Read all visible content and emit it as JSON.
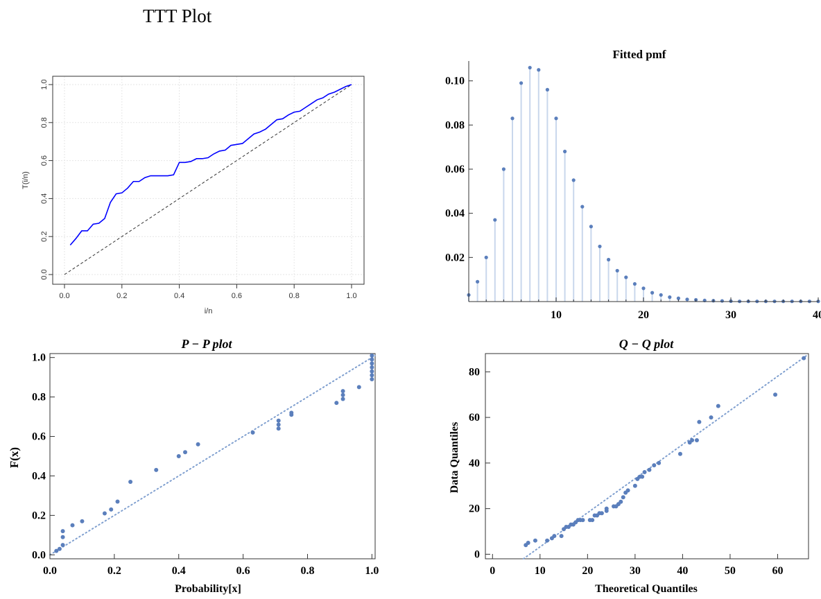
{
  "figure_title": "TTT Plot",
  "colors": {
    "ttt_line": "#0000ff",
    "points": "#5b7fbc",
    "stem": "#c9d7ec",
    "reference": "#7f9fcf"
  },
  "chart_data": [
    {
      "id": "ttt",
      "type": "line",
      "title": "",
      "xlabel": "i/n",
      "ylabel": "T(i/n)",
      "xlim": [
        0,
        1
      ],
      "ylim": [
        0,
        1
      ],
      "xticks": [
        "0.0",
        "0.2",
        "0.4",
        "0.6",
        "0.8",
        "1.0"
      ],
      "yticks": [
        "0.0",
        "0.2",
        "0.4",
        "0.6",
        "0.8",
        "1.0"
      ],
      "grid": true,
      "reference_line": "diagonal",
      "series": [
        {
          "x": [
            0.02,
            0.04,
            0.06,
            0.08,
            0.1,
            0.12,
            0.14,
            0.16,
            0.18,
            0.2,
            0.22,
            0.24,
            0.26,
            0.28,
            0.3,
            0.32,
            0.34,
            0.36,
            0.38,
            0.4,
            0.42,
            0.44,
            0.46,
            0.48,
            0.5,
            0.52,
            0.54,
            0.56,
            0.58,
            0.6,
            0.62,
            0.64,
            0.66,
            0.68,
            0.7,
            0.72,
            0.74,
            0.76,
            0.78,
            0.8,
            0.82,
            0.84,
            0.86,
            0.88,
            0.9,
            0.92,
            0.94,
            0.96,
            0.98,
            1.0
          ],
          "y": [
            0.155,
            0.19,
            0.23,
            0.23,
            0.265,
            0.27,
            0.295,
            0.38,
            0.425,
            0.43,
            0.455,
            0.49,
            0.49,
            0.51,
            0.52,
            0.52,
            0.52,
            0.52,
            0.525,
            0.59,
            0.59,
            0.595,
            0.61,
            0.61,
            0.615,
            0.635,
            0.65,
            0.655,
            0.68,
            0.685,
            0.69,
            0.715,
            0.74,
            0.75,
            0.765,
            0.79,
            0.815,
            0.82,
            0.84,
            0.855,
            0.86,
            0.88,
            0.9,
            0.92,
            0.93,
            0.95,
            0.96,
            0.975,
            0.99,
            1.0
          ]
        }
      ]
    },
    {
      "id": "pmf",
      "type": "bar",
      "title": "Fitted pmf",
      "xlabel": "",
      "ylabel": "",
      "xlim": [
        0,
        40
      ],
      "ylim": [
        0,
        0.109
      ],
      "xticks": [
        "10",
        "20",
        "30",
        "40"
      ],
      "yticks": [
        "0.02",
        "0.04",
        "0.06",
        "0.08",
        "0.10"
      ],
      "grid": false,
      "x": [
        0,
        1,
        2,
        3,
        4,
        5,
        6,
        7,
        8,
        9,
        10,
        11,
        12,
        13,
        14,
        15,
        16,
        17,
        18,
        19,
        20,
        21,
        22,
        23,
        24,
        25,
        26,
        27,
        28,
        29,
        30,
        31,
        32,
        33,
        34,
        35,
        36,
        37,
        38,
        39,
        40
      ],
      "values": [
        0.003,
        0.009,
        0.02,
        0.037,
        0.06,
        0.083,
        0.099,
        0.106,
        0.105,
        0.096,
        0.083,
        0.068,
        0.055,
        0.043,
        0.034,
        0.025,
        0.019,
        0.014,
        0.011,
        0.008,
        0.006,
        0.004,
        0.003,
        0.002,
        0.0015,
        0.001,
        0.0008,
        0.0005,
        0.0004,
        0.0003,
        0.0002,
        0.0001,
        0.0001,
        0.0001,
        0.0001,
        0.0001,
        0.0001,
        0.0001,
        0.0001,
        0.0001,
        0.0001
      ]
    },
    {
      "id": "pp",
      "type": "scatter",
      "title": "P − P plot",
      "xlabel": "Probability[x]",
      "ylabel": "F(x)",
      "xlim": [
        0,
        1.01
      ],
      "ylim": [
        -0.02,
        1.02
      ],
      "xticks": [
        "0.0",
        "0.2",
        "0.4",
        "0.6",
        "0.8",
        "1.0"
      ],
      "yticks": [
        "0.0",
        "0.2",
        "0.4",
        "0.6",
        "0.8",
        "1.0"
      ],
      "grid": false,
      "reference_line": "diagonal",
      "points": [
        [
          0.02,
          0.02
        ],
        [
          0.03,
          0.03
        ],
        [
          0.04,
          0.05
        ],
        [
          0.04,
          0.09
        ],
        [
          0.04,
          0.12
        ],
        [
          0.07,
          0.15
        ],
        [
          0.1,
          0.17
        ],
        [
          0.17,
          0.21
        ],
        [
          0.19,
          0.23
        ],
        [
          0.21,
          0.27
        ],
        [
          0.25,
          0.37
        ],
        [
          0.33,
          0.43
        ],
        [
          0.4,
          0.5
        ],
        [
          0.42,
          0.52
        ],
        [
          0.46,
          0.56
        ],
        [
          0.63,
          0.62
        ],
        [
          0.71,
          0.64
        ],
        [
          0.71,
          0.66
        ],
        [
          0.71,
          0.68
        ],
        [
          0.75,
          0.71
        ],
        [
          0.75,
          0.72
        ],
        [
          0.89,
          0.77
        ],
        [
          0.91,
          0.79
        ],
        [
          0.91,
          0.81
        ],
        [
          0.91,
          0.83
        ],
        [
          0.96,
          0.85
        ],
        [
          1.0,
          0.89
        ],
        [
          1.0,
          0.91
        ],
        [
          1.0,
          0.93
        ],
        [
          1.0,
          0.95
        ],
        [
          1.0,
          0.97
        ],
        [
          1.0,
          0.99
        ],
        [
          1.0,
          1.01
        ]
      ]
    },
    {
      "id": "qq",
      "type": "scatter",
      "title": "Q − Q plot",
      "xlabel": "Theoretical Quantiles",
      "ylabel": "Data Quantiles",
      "xlim": [
        -1.5,
        66.5
      ],
      "ylim": [
        -2,
        88
      ],
      "xticks": [
        "0",
        "10",
        "20",
        "30",
        "40",
        "50",
        "60"
      ],
      "yticks": [
        "0",
        "20",
        "40",
        "60",
        "80"
      ],
      "grid": false,
      "reference_line": [
        [
          6.5,
          -2
        ],
        [
          66,
          87
        ]
      ],
      "points": [
        [
          7,
          4
        ],
        [
          7.5,
          5
        ],
        [
          9,
          6
        ],
        [
          11.5,
          6
        ],
        [
          12.5,
          7
        ],
        [
          13,
          8
        ],
        [
          14.5,
          8
        ],
        [
          15,
          11
        ],
        [
          15.5,
          12
        ],
        [
          16,
          12
        ],
        [
          16.5,
          13
        ],
        [
          17,
          13
        ],
        [
          17.5,
          14
        ],
        [
          18,
          15
        ],
        [
          18.5,
          15
        ],
        [
          19,
          15
        ],
        [
          20.5,
          15
        ],
        [
          21,
          15
        ],
        [
          21.5,
          17
        ],
        [
          22,
          17
        ],
        [
          22.5,
          18
        ],
        [
          23,
          18
        ],
        [
          24,
          19
        ],
        [
          24,
          20
        ],
        [
          25.5,
          21
        ],
        [
          26,
          21
        ],
        [
          26.5,
          22
        ],
        [
          27,
          23
        ],
        [
          27.5,
          25
        ],
        [
          28,
          27
        ],
        [
          28.5,
          28
        ],
        [
          30,
          30
        ],
        [
          30.5,
          33
        ],
        [
          31,
          34
        ],
        [
          31.5,
          34
        ],
        [
          32,
          36
        ],
        [
          33,
          37
        ],
        [
          34,
          39
        ],
        [
          35,
          40
        ],
        [
          39.5,
          44
        ],
        [
          41.5,
          49
        ],
        [
          42,
          50
        ],
        [
          43,
          50
        ],
        [
          43.5,
          58
        ],
        [
          46,
          60
        ],
        [
          47.5,
          65
        ],
        [
          59.5,
          70
        ],
        [
          65.5,
          86
        ]
      ]
    }
  ]
}
